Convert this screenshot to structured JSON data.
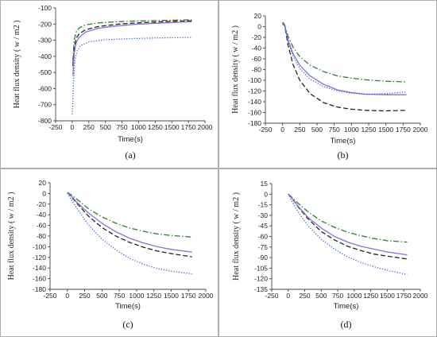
{
  "colors": {
    "green": "#2e7d32",
    "black": "#222222",
    "purple": "#8a6fd6",
    "blue": "#2f5fcf"
  },
  "chart_data": [
    {
      "panel": "(a)",
      "type": "line",
      "ylabel": "Heat flux density  ( w / m2 )",
      "xlabel": "Time(s)",
      "xlim": [
        -250,
        2000
      ],
      "ylim": [
        -800,
        -100
      ],
      "xticks": [
        "-250",
        "0",
        "250",
        "500",
        "750",
        "1000",
        "1250",
        "1500",
        "1750",
        "2000"
      ],
      "yticks": [
        "-100",
        "-200",
        "-300",
        "-400",
        "-500",
        "-600",
        "-700",
        "-800"
      ],
      "series": [
        {
          "style": "dashdot",
          "color": "green",
          "points": [
            [
              10,
              -430
            ],
            [
              30,
              -300
            ],
            [
              60,
              -250
            ],
            [
              100,
              -225
            ],
            [
              200,
              -205
            ],
            [
              400,
              -192
            ],
            [
              700,
              -185
            ],
            [
              1000,
              -181
            ],
            [
              1400,
              -177
            ],
            [
              1800,
              -174
            ]
          ]
        },
        {
          "style": "dashed",
          "color": "black",
          "points": [
            [
              10,
              -460
            ],
            [
              30,
              -345
            ],
            [
              60,
              -290
            ],
            [
              100,
              -262
            ],
            [
              200,
              -235
            ],
            [
              400,
              -215
            ],
            [
              700,
              -200
            ],
            [
              1000,
              -192
            ],
            [
              1400,
              -185
            ],
            [
              1800,
              -180
            ]
          ]
        },
        {
          "style": "solid",
          "color": "purple",
          "points": [
            [
              10,
              -520
            ],
            [
              30,
              -380
            ],
            [
              60,
              -315
            ],
            [
              100,
              -285
            ],
            [
              200,
              -250
            ],
            [
              400,
              -225
            ],
            [
              700,
              -210
            ],
            [
              1000,
              -200
            ],
            [
              1400,
              -192
            ],
            [
              1800,
              -186
            ]
          ]
        },
        {
          "style": "dotted",
          "color": "blue",
          "points": [
            [
              0,
              -760
            ],
            [
              10,
              -680
            ],
            [
              20,
              -540
            ],
            [
              40,
              -430
            ],
            [
              70,
              -370
            ],
            [
              120,
              -335
            ],
            [
              250,
              -310
            ],
            [
              500,
              -297
            ],
            [
              900,
              -290
            ],
            [
              1300,
              -286
            ],
            [
              1800,
              -283
            ]
          ]
        }
      ]
    },
    {
      "panel": "(b)",
      "type": "line",
      "ylabel": "Heat flux density  ( w / m2 )",
      "xlabel": "Time(s)",
      "xlim": [
        -250,
        2000
      ],
      "ylim": [
        -180,
        20
      ],
      "xticks": [
        "-250",
        "0",
        "250",
        "500",
        "750",
        "1000",
        "1250",
        "1500",
        "1750",
        "2000"
      ],
      "yticks": [
        "20",
        "0",
        "-20",
        "-40",
        "-60",
        "-80",
        "-100",
        "-120",
        "-140",
        "-160",
        "-180"
      ],
      "series": [
        {
          "style": "dashdot",
          "color": "green",
          "points": [
            [
              0,
              5
            ],
            [
              30,
              2
            ],
            [
              80,
              -18
            ],
            [
              150,
              -38
            ],
            [
              250,
              -56
            ],
            [
              400,
              -72
            ],
            [
              600,
              -84
            ],
            [
              800,
              -92
            ],
            [
              1000,
              -96
            ],
            [
              1200,
              -99
            ],
            [
              1500,
              -102
            ],
            [
              1800,
              -103
            ]
          ]
        },
        {
          "style": "dashed",
          "color": "black",
          "points": [
            [
              0,
              8
            ],
            [
              30,
              3
            ],
            [
              80,
              -35
            ],
            [
              150,
              -70
            ],
            [
              250,
              -100
            ],
            [
              400,
              -125
            ],
            [
              600,
              -142
            ],
            [
              800,
              -150
            ],
            [
              1000,
              -154
            ],
            [
              1200,
              -156
            ],
            [
              1500,
              -157
            ],
            [
              1800,
              -156
            ]
          ]
        },
        {
          "style": "solid",
          "color": "purple",
          "points": [
            [
              0,
              6
            ],
            [
              30,
              2
            ],
            [
              80,
              -25
            ],
            [
              150,
              -50
            ],
            [
              250,
              -72
            ],
            [
              400,
              -92
            ],
            [
              600,
              -108
            ],
            [
              800,
              -118
            ],
            [
              1000,
              -123
            ],
            [
              1200,
              -126
            ],
            [
              1500,
              -127
            ],
            [
              1800,
              -127
            ]
          ]
        },
        {
          "style": "dotted",
          "color": "blue",
          "points": [
            [
              0,
              4
            ],
            [
              30,
              1
            ],
            [
              80,
              -28
            ],
            [
              150,
              -55
            ],
            [
              250,
              -78
            ],
            [
              400,
              -98
            ],
            [
              600,
              -112
            ],
            [
              800,
              -120
            ],
            [
              1000,
              -124
            ],
            [
              1200,
              -126
            ],
            [
              1500,
              -125
            ],
            [
              1800,
              -122
            ]
          ]
        }
      ]
    },
    {
      "panel": "(c)",
      "type": "line",
      "ylabel": "Heat flux density  ( w / m2 )",
      "xlabel": "Time(s)",
      "xlim": [
        -250,
        2000
      ],
      "ylim": [
        -180,
        20
      ],
      "xticks": [
        "-250",
        "0",
        "250",
        "500",
        "750",
        "1000",
        "1250",
        "1500",
        "1750",
        "2000"
      ],
      "yticks": [
        "20",
        "0",
        "-20",
        "-40",
        "-60",
        "-80",
        "-100",
        "-120",
        "-140",
        "-160",
        "-180"
      ],
      "series": [
        {
          "style": "dashdot",
          "color": "green",
          "points": [
            [
              0,
              2
            ],
            [
              50,
              -2
            ],
            [
              150,
              -12
            ],
            [
              300,
              -28
            ],
            [
              500,
              -44
            ],
            [
              700,
              -56
            ],
            [
              900,
              -65
            ],
            [
              1100,
              -71
            ],
            [
              1300,
              -76
            ],
            [
              1500,
              -79
            ],
            [
              1800,
              -82
            ]
          ]
        },
        {
          "style": "dashed",
          "color": "black",
          "points": [
            [
              0,
              2
            ],
            [
              50,
              -5
            ],
            [
              150,
              -20
            ],
            [
              300,
              -42
            ],
            [
              500,
              -64
            ],
            [
              700,
              -80
            ],
            [
              900,
              -92
            ],
            [
              1100,
              -101
            ],
            [
              1300,
              -108
            ],
            [
              1500,
              -113
            ],
            [
              1800,
              -119
            ]
          ]
        },
        {
          "style": "solid",
          "color": "purple",
          "points": [
            [
              0,
              2
            ],
            [
              50,
              -4
            ],
            [
              150,
              -18
            ],
            [
              300,
              -36
            ],
            [
              500,
              -56
            ],
            [
              700,
              -72
            ],
            [
              900,
              -84
            ],
            [
              1100,
              -93
            ],
            [
              1300,
              -100
            ],
            [
              1500,
              -105
            ],
            [
              1800,
              -110
            ]
          ]
        },
        {
          "style": "dotted",
          "color": "blue",
          "points": [
            [
              0,
              0
            ],
            [
              50,
              -10
            ],
            [
              150,
              -30
            ],
            [
              300,
              -58
            ],
            [
              500,
              -86
            ],
            [
              700,
              -106
            ],
            [
              900,
              -122
            ],
            [
              1100,
              -133
            ],
            [
              1300,
              -141
            ],
            [
              1500,
              -146
            ],
            [
              1800,
              -151
            ]
          ]
        }
      ]
    },
    {
      "panel": "(d)",
      "type": "line",
      "ylabel": "Heat flux density  ( w / m2 )",
      "xlabel": "Time(s)",
      "xlim": [
        -250,
        2000
      ],
      "ylim": [
        -135,
        15
      ],
      "xticks": [
        "-250",
        "0",
        "250",
        "500",
        "750",
        "1000",
        "1250",
        "1500",
        "1750",
        "2000"
      ],
      "yticks": [
        "15",
        "0",
        "-15",
        "-30",
        "-45",
        "-60",
        "-75",
        "-90",
        "-105",
        "-120",
        "-135"
      ],
      "series": [
        {
          "style": "dashdot",
          "color": "green",
          "points": [
            [
              0,
              0
            ],
            [
              50,
              -4
            ],
            [
              150,
              -13
            ],
            [
              300,
              -25
            ],
            [
              500,
              -38
            ],
            [
              700,
              -47
            ],
            [
              900,
              -54
            ],
            [
              1100,
              -59
            ],
            [
              1300,
              -63
            ],
            [
              1500,
              -66
            ],
            [
              1800,
              -68
            ]
          ]
        },
        {
          "style": "dashed",
          "color": "black",
          "points": [
            [
              0,
              0
            ],
            [
              50,
              -5
            ],
            [
              150,
              -18
            ],
            [
              300,
              -35
            ],
            [
              500,
              -53
            ],
            [
              700,
              -65
            ],
            [
              900,
              -74
            ],
            [
              1100,
              -80
            ],
            [
              1300,
              -85
            ],
            [
              1500,
              -88
            ],
            [
              1800,
              -92
            ]
          ]
        },
        {
          "style": "solid",
          "color": "purple",
          "points": [
            [
              0,
              0
            ],
            [
              50,
              -5
            ],
            [
              150,
              -17
            ],
            [
              300,
              -33
            ],
            [
              500,
              -48
            ],
            [
              700,
              -60
            ],
            [
              900,
              -68
            ],
            [
              1100,
              -74
            ],
            [
              1300,
              -78
            ],
            [
              1500,
              -82
            ],
            [
              1800,
              -86
            ]
          ]
        },
        {
          "style": "dotted",
          "color": "blue",
          "points": [
            [
              0,
              0
            ],
            [
              50,
              -9
            ],
            [
              150,
              -25
            ],
            [
              300,
              -45
            ],
            [
              500,
              -64
            ],
            [
              700,
              -78
            ],
            [
              900,
              -89
            ],
            [
              1100,
              -97
            ],
            [
              1300,
              -103
            ],
            [
              1500,
              -108
            ],
            [
              1800,
              -114
            ]
          ]
        }
      ]
    }
  ]
}
